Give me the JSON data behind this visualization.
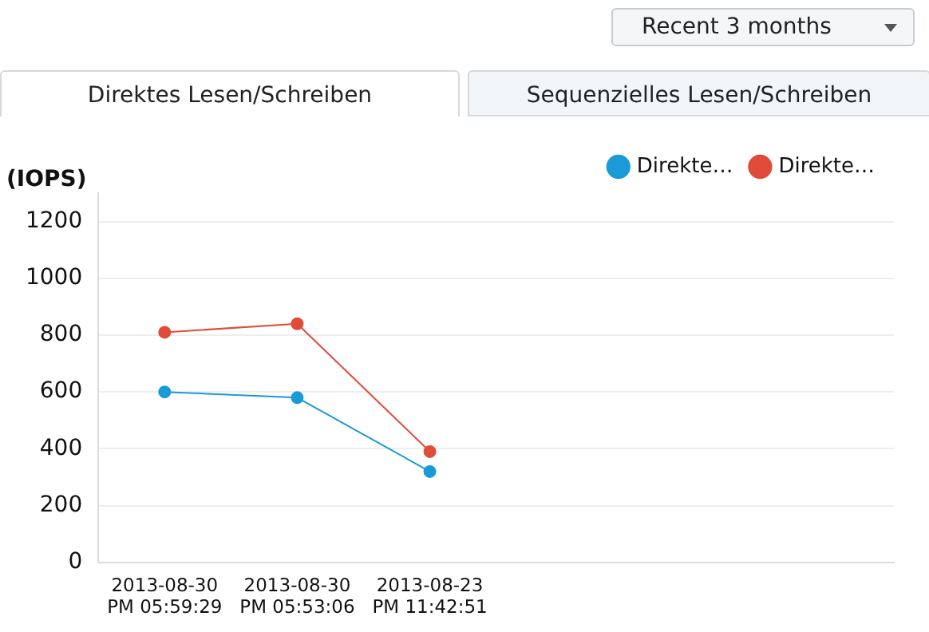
{
  "chart_data": {
    "type": "line",
    "ylabel": "(IOPS)",
    "annotations": [
      "Recent 3 months",
      "Direktes Lesen/Schreiben",
      "Sequenzielles Lesen/Schreiben"
    ],
    "categories": [
      "2013-08-30 PM 05:59:29",
      "2013-08-30 PM 05:53:06",
      "2013-08-23 PM 11:42:51",
      null,
      null,
      null
    ],
    "series": [
      {
        "name": "Direkte…",
        "color": "#1a9ad6",
        "values": [
          600,
          580,
          320,
          null,
          null,
          null
        ]
      },
      {
        "name": "Direkte…",
        "color": "#e04b3a",
        "values": [
          810,
          840,
          390,
          null,
          null,
          null
        ]
      }
    ],
    "ylim": [
      0,
      1300
    ],
    "yticks": [
      0,
      200,
      400,
      600,
      800,
      1000,
      1200
    ],
    "grid": "y",
    "legend": "top right",
    "marker": "circle",
    "line_style": "solid"
  }
}
